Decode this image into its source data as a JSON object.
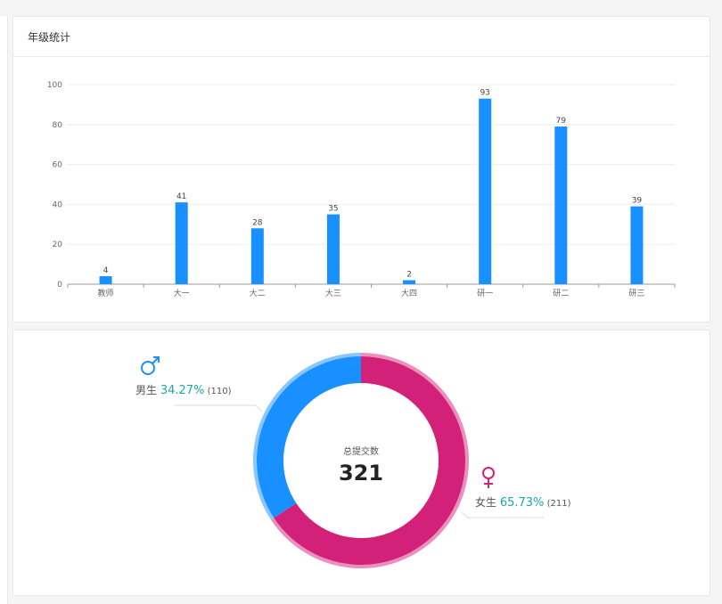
{
  "bar_card": {
    "title": "年级统计"
  },
  "donut_card": {
    "center_label": "总提交数",
    "total": "321"
  },
  "colors": {
    "bar": "#1890ff",
    "male": "#1890ff",
    "female": "#d3217a",
    "pct": "#1fa5a5"
  },
  "chart_data": [
    {
      "type": "bar",
      "title": "年级统计",
      "categories": [
        "教师",
        "大一",
        "大二",
        "大三",
        "大四",
        "研一",
        "研二",
        "研三"
      ],
      "values": [
        4,
        41,
        28,
        35,
        2,
        93,
        79,
        39
      ],
      "ylim": [
        0,
        100
      ],
      "yticks": [
        0,
        20,
        40,
        60,
        80,
        100
      ],
      "grid": true
    },
    {
      "type": "pie",
      "title": "总提交数",
      "total": 321,
      "slices": [
        {
          "name": "男生",
          "value": 110,
          "percent_label": "34.27%",
          "count_label": "(110)",
          "icon": "male-icon"
        },
        {
          "name": "女生",
          "value": 211,
          "percent_label": "65.73%",
          "count_label": "(211)",
          "icon": "female-icon"
        }
      ]
    }
  ]
}
